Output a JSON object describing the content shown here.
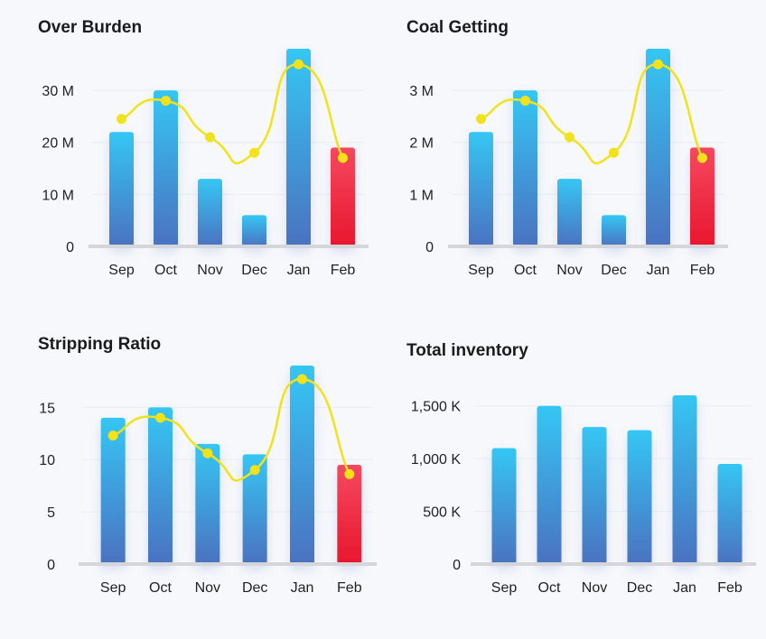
{
  "colors": {
    "bar_top": "#35c6f4",
    "bar_bottom": "#4a72c0",
    "highlight_top": "#f5485f",
    "highlight_bottom": "#e8172e",
    "line": "#f2e21a",
    "grid": "#e9ecf3",
    "baseline": "#d4d6da"
  },
  "chart_data": [
    {
      "id": "over-burden",
      "type": "bar",
      "title": "Over Burden",
      "categories": [
        "Sep",
        "Oct",
        "Nov",
        "Dec",
        "Jan",
        "Feb"
      ],
      "values": [
        22,
        30,
        13,
        6,
        38,
        19
      ],
      "line_values": [
        24.5,
        28,
        21,
        18,
        35,
        17
      ],
      "highlight_index": 5,
      "ylim": [
        0,
        38
      ],
      "yticks": [
        0,
        10,
        20,
        30
      ],
      "ytick_labels": [
        "0",
        "10 M",
        "20 M",
        "30 M"
      ],
      "grid": true
    },
    {
      "id": "coal-getting",
      "type": "bar",
      "title": "Coal Getting",
      "categories": [
        "Sep",
        "Oct",
        "Nov",
        "Dec",
        "Jan",
        "Feb"
      ],
      "values": [
        2.2,
        3.0,
        1.3,
        0.6,
        3.8,
        1.9
      ],
      "line_values": [
        2.45,
        2.8,
        2.1,
        1.8,
        3.5,
        1.7
      ],
      "highlight_index": 5,
      "ylim": [
        0,
        3.8
      ],
      "yticks": [
        0,
        1,
        2,
        3
      ],
      "ytick_labels": [
        "0",
        "1 M",
        "2 M",
        "3 M"
      ],
      "grid": true
    },
    {
      "id": "stripping-ratio",
      "type": "bar",
      "title": "Stripping Ratio",
      "categories": [
        "Sep",
        "Oct",
        "Nov",
        "Dec",
        "Jan",
        "Feb"
      ],
      "values": [
        14,
        15,
        11.5,
        10.5,
        19,
        9.5
      ],
      "line_values": [
        12.3,
        14,
        10.6,
        9,
        17.7,
        8.6
      ],
      "highlight_index": 5,
      "ylim": [
        0,
        19
      ],
      "yticks": [
        0,
        5,
        10,
        15
      ],
      "ytick_labels": [
        "0",
        "5",
        "10",
        "15"
      ],
      "grid": true
    },
    {
      "id": "total-inventory",
      "type": "bar",
      "title": "Total inventory",
      "categories": [
        "Sep",
        "Oct",
        "Nov",
        "Dec",
        "Jan",
        "Feb"
      ],
      "values": [
        1100,
        1500,
        1300,
        1270,
        1600,
        950
      ],
      "line_values": [],
      "highlight_index": -1,
      "ylim": [
        0,
        1600
      ],
      "yticks": [
        0,
        500,
        1000,
        1500
      ],
      "ytick_labels": [
        "0",
        "500 K",
        "1,000 K",
        "1,500 K"
      ],
      "grid": true
    }
  ]
}
